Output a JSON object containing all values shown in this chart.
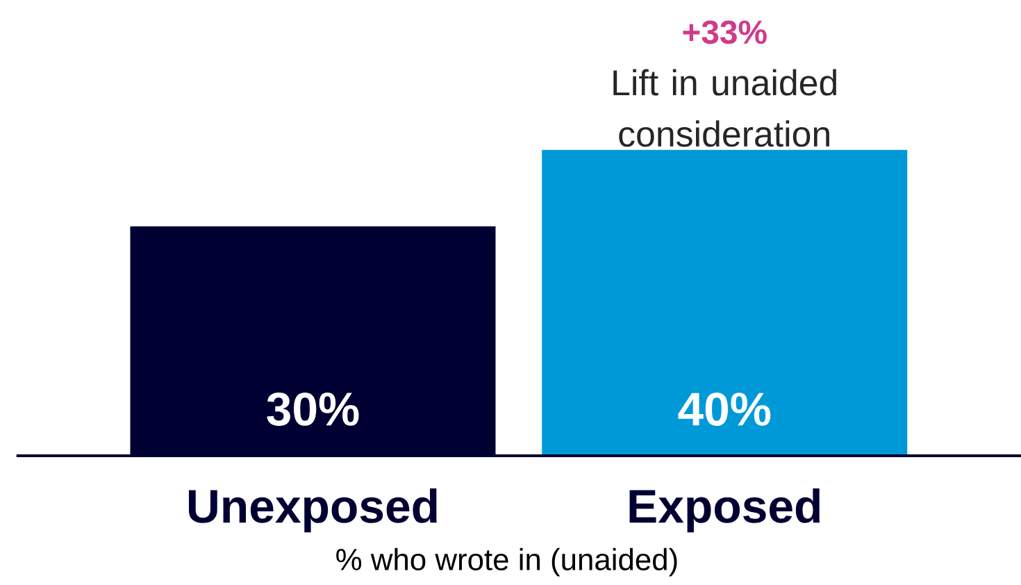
{
  "chart_data": {
    "type": "bar",
    "categories": [
      "Unexposed",
      "Exposed"
    ],
    "values": [
      30,
      40
    ],
    "colors": [
      "#000033",
      "#0099d8"
    ],
    "data_labels": true,
    "value_labels": [
      "30%",
      "40%"
    ],
    "annotations": [
      "+33%",
      "Lift in unaided consideration",
      "% who wrote in (unaided)"
    ]
  }
}
